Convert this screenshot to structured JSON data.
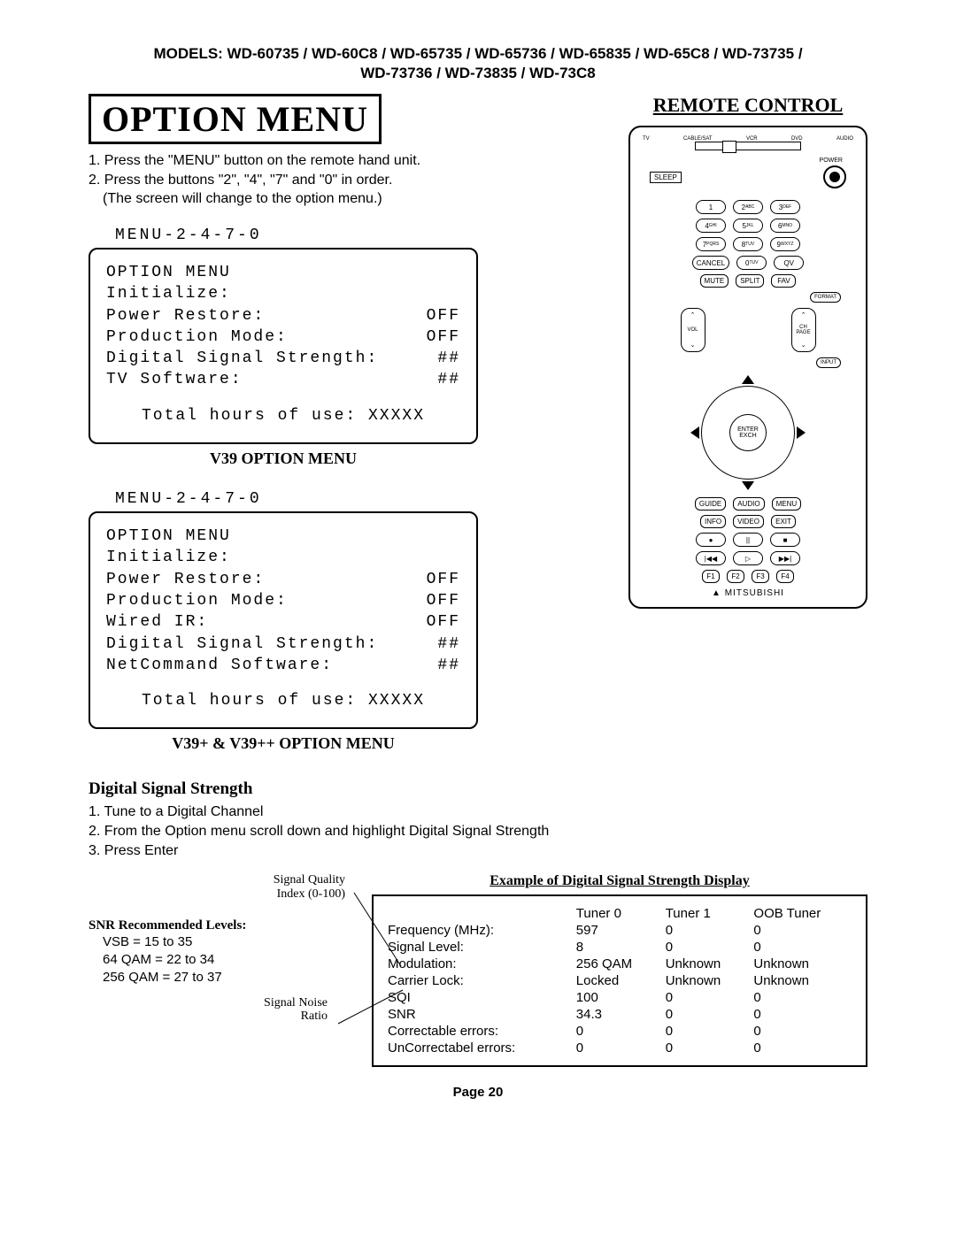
{
  "models_line1": "MODELS: WD-60735 / WD-60C8 / WD-65735 / WD-65736 / WD-65835 / WD-65C8 / WD-73735 /",
  "models_line2": "WD-73736 / WD-73835 / WD-73C8",
  "main_title": "OPTION MENU",
  "remote_title": "REMOTE CONTROL",
  "instr1": "1. Press the \"MENU\" button on the remote hand unit.",
  "instr2": "2. Press the buttons \"2\", \"4\", \"7\" and \"0\" in order.",
  "instr3": "(The screen will change to the option menu.)",
  "screen_code": "MENU-2-4-7-0",
  "screen1": {
    "title": "OPTION MENU",
    "init": "Initialize:",
    "r1l": "Power Restore:",
    "r1r": "OFF",
    "r2l": "Production Mode:",
    "r2r": "OFF",
    "r3l": "Digital Signal Strength:",
    "r3r": "##",
    "r4l": "TV Software:",
    "r4r": "##",
    "total": "Total hours of use:  XXXXX",
    "caption": "V39 OPTION MENU"
  },
  "screen2": {
    "title": "OPTION MENU",
    "init": "Initialize:",
    "r1l": "Power Restore:",
    "r1r": "OFF",
    "r2l": "Production Mode:",
    "r2r": "OFF",
    "r3l": "Wired IR:",
    "r3r": "OFF",
    "r4l": "Digital Signal Strength:",
    "r4r": "##",
    "r5l": "NetCommand Software:",
    "r5r": "##",
    "total": "Total hours of use:  XXXXX",
    "caption": "V39+ & V39++ OPTION MENU"
  },
  "dss_title": "Digital Signal Strength",
  "dss1": "1. Tune to a Digital Channel",
  "dss2": "2. From the Option menu scroll down and highlight Digital Signal Strength",
  "dss3": "3. Press Enter",
  "sqi_label1": "Signal Quality",
  "sqi_label2": "Index (0-100)",
  "snr_head": "SNR Recommended Levels:",
  "snr_v1": "VSB = 15 to 35",
  "snr_v2": "64 QAM = 22 to 34",
  "snr_v3": "256 QAM = 27 to 37",
  "snr_label1": "Signal Noise",
  "snr_label2": "Ratio",
  "table_caption": "Example of Digital Signal Strength Display",
  "table": {
    "headers": [
      "",
      "Tuner 0",
      "Tuner 1",
      "OOB Tuner"
    ],
    "rows": [
      [
        "Frequency (MHz):",
        "597",
        "0",
        "0"
      ],
      [
        "Signal Level:",
        "8",
        "0",
        "0"
      ],
      [
        "Modulation:",
        "256 QAM",
        "Unknown",
        "Unknown"
      ],
      [
        "Carrier Lock:",
        "Locked",
        "Unknown",
        "Unknown"
      ],
      [
        "SQI",
        "100",
        "0",
        "0"
      ],
      [
        "SNR",
        "34.3",
        "0",
        "0"
      ],
      [
        "Correctable errors:",
        "0",
        "0",
        "0"
      ],
      [
        "UnCorrectabel errors:",
        "0",
        "0",
        "0"
      ]
    ]
  },
  "page_num": "Page 20",
  "remote": {
    "top_labels": [
      "TV",
      "CABLE/SAT",
      "VCR",
      "DVD",
      "AUDIO"
    ],
    "power": "POWER",
    "sleep": "SLEEP",
    "num_rows": [
      [
        "1",
        "2 ABC",
        "3 DEF"
      ],
      [
        "4 GHI",
        "5 JKL",
        "6 MNO"
      ],
      [
        "7 PQRS",
        "8 TUV",
        "9 WXYZ"
      ],
      [
        "CANCEL",
        "0 TUV",
        "QV"
      ]
    ],
    "row5": [
      "MUTE",
      "SPLIT",
      "FAV"
    ],
    "format": "FORMAT",
    "vol": "VOL",
    "ch": "CH\nPAGE",
    "input": "INPUT",
    "enter": "ENTER",
    "exch": "EXCH",
    "row6": [
      "GUIDE",
      "AUDIO",
      "MENU"
    ],
    "row7": [
      "INFO",
      "VIDEO",
      "EXIT"
    ],
    "transport1": [
      "●",
      "||",
      "■"
    ],
    "transport2": [
      "|◀◀",
      "▷",
      "▶▶|"
    ],
    "frow": [
      "F1",
      "F2",
      "F3",
      "F4"
    ],
    "brand": "▲ MITSUBISHI"
  }
}
